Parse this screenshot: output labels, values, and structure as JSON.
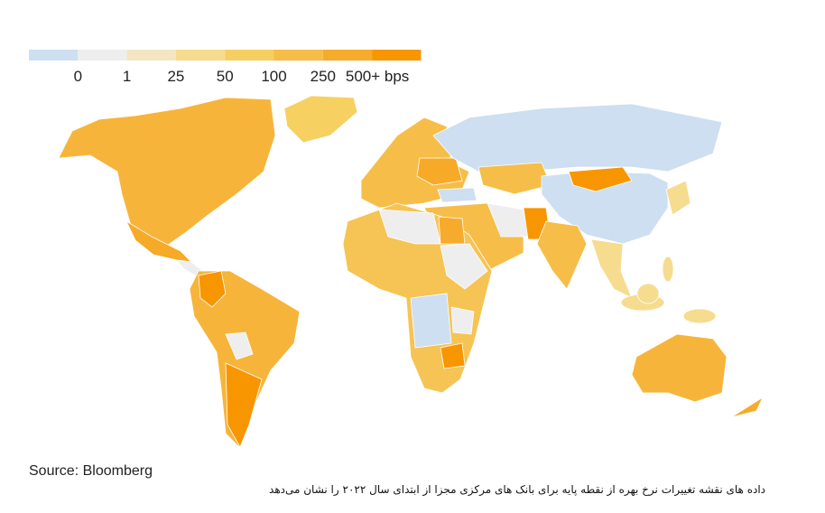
{
  "legend": {
    "colors": [
      "#cddff1",
      "#eeeeee",
      "#f4e6c2",
      "#f5dc8f",
      "#f6cf62",
      "#f6be48",
      "#f7ab2c",
      "#f79600"
    ],
    "labels": [
      "0",
      "1",
      "25",
      "50",
      "100",
      "250",
      "500+ bps"
    ]
  },
  "source": "Source: Bloomberg",
  "caption": "داده های نقشه تغییرات نرخ بهره از نقطه پایه برای بانک های مرکزی مجزا از ابتدای سال ۲۰۲۲ را نشان می‌دهد"
}
